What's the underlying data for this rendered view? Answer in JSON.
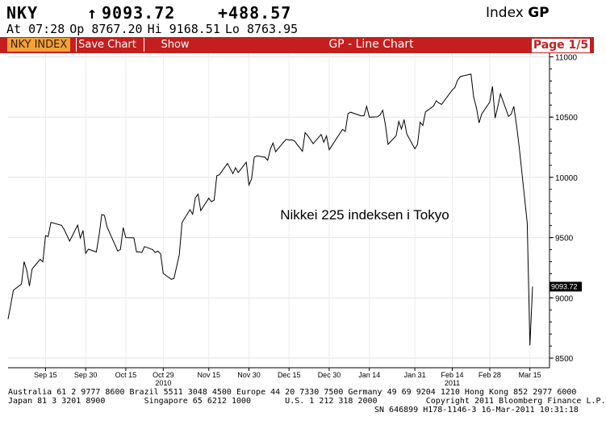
{
  "header": {
    "ticker": "NKY",
    "arrow": "↑",
    "last_price": "9093.72",
    "change": "+488.57",
    "index_label": "Index",
    "index_code": "GP",
    "time": "At 07:28",
    "open": "Op 8767.20",
    "high": "Hi 9168.51",
    "low": "Lo 8763.95"
  },
  "toolbar": {
    "index_tab": "NKY INDEX",
    "save_chart": "Save Chart",
    "show": "Show",
    "title": "GP - Line Chart",
    "page": "Page 1/5"
  },
  "colors": {
    "accent": "#c41e1e",
    "tab_orange": "#f2a23a",
    "line": "#000000",
    "grid": "#dcdcdc"
  },
  "chart_data": {
    "type": "line",
    "annotation": "Nikkei 225 indeksen i Tokyo",
    "last_value_label": "9093.72",
    "y_ticks": [
      8500,
      9000,
      9500,
      10000,
      10500,
      11000
    ],
    "ylim": [
      8420,
      11030
    ],
    "grid": true,
    "x_tick_labels": [
      "Sep 15",
      "Sep 30",
      "Oct 15",
      "Oct 29",
      "Nov 15",
      "Nov 30",
      "Dec 15",
      "Dec 30",
      "Jan 14",
      "Jan 31",
      "Feb 14",
      "Feb 28",
      "Mar 15"
    ],
    "year_labels": [
      {
        "label": "2010",
        "under": "Oct 29"
      },
      {
        "label": "2011",
        "under": "Feb 14"
      }
    ],
    "x_range": [
      "2010-09-01",
      "2011-03-16"
    ],
    "series": [
      {
        "values": [
          [
            "2010-09-01",
            8824
          ],
          [
            "2010-09-02",
            8940
          ],
          [
            "2010-09-03",
            9063
          ],
          [
            "2010-09-06",
            9114
          ],
          [
            "2010-09-07",
            9301
          ],
          [
            "2010-09-08",
            9227
          ],
          [
            "2010-09-09",
            9098
          ],
          [
            "2010-09-10",
            9240
          ],
          [
            "2010-09-13",
            9320
          ],
          [
            "2010-09-14",
            9299
          ],
          [
            "2010-09-15",
            9516
          ],
          [
            "2010-09-16",
            9509
          ],
          [
            "2010-09-17",
            9626
          ],
          [
            "2010-09-21",
            9602
          ],
          [
            "2010-09-22",
            9566
          ],
          [
            "2010-09-24",
            9471
          ],
          [
            "2010-09-27",
            9603
          ],
          [
            "2010-09-28",
            9496
          ],
          [
            "2010-09-29",
            9559
          ],
          [
            "2010-09-30",
            9369
          ],
          [
            "2010-10-01",
            9404
          ],
          [
            "2010-10-04",
            9381
          ],
          [
            "2010-10-05",
            9518
          ],
          [
            "2010-10-06",
            9691
          ],
          [
            "2010-10-07",
            9684
          ],
          [
            "2010-10-08",
            9588
          ],
          [
            "2010-10-12",
            9388
          ],
          [
            "2010-10-13",
            9403
          ],
          [
            "2010-10-14",
            9583
          ],
          [
            "2010-10-15",
            9500
          ],
          [
            "2010-10-18",
            9498
          ],
          [
            "2010-10-19",
            9381
          ],
          [
            "2010-10-20",
            9382
          ],
          [
            "2010-10-21",
            9376
          ],
          [
            "2010-10-22",
            9426
          ],
          [
            "2010-10-25",
            9401
          ],
          [
            "2010-10-26",
            9377
          ],
          [
            "2010-10-27",
            9387
          ],
          [
            "2010-10-28",
            9366
          ],
          [
            "2010-10-29",
            9202
          ],
          [
            "2010-11-01",
            9154
          ],
          [
            "2010-11-02",
            9160
          ],
          [
            "2010-11-04",
            9358
          ],
          [
            "2010-11-05",
            9625
          ],
          [
            "2010-11-08",
            9732
          ],
          [
            "2010-11-09",
            9694
          ],
          [
            "2010-11-10",
            9830
          ],
          [
            "2010-11-11",
            9861
          ],
          [
            "2010-11-12",
            9724
          ],
          [
            "2010-11-15",
            9827
          ],
          [
            "2010-11-16",
            9797
          ],
          [
            "2010-11-17",
            9811
          ],
          [
            "2010-11-18",
            10013
          ],
          [
            "2010-11-19",
            10022
          ],
          [
            "2010-11-22",
            10115
          ],
          [
            "2010-11-24",
            10030
          ],
          [
            "2010-11-25",
            10080
          ],
          [
            "2010-11-26",
            10039
          ],
          [
            "2010-11-29",
            10125
          ],
          [
            "2010-11-30",
            9937
          ],
          [
            "2010-12-01",
            9988
          ],
          [
            "2010-12-02",
            10168
          ],
          [
            "2010-12-03",
            10178
          ],
          [
            "2010-12-06",
            10167
          ],
          [
            "2010-12-07",
            10141
          ],
          [
            "2010-12-08",
            10232
          ],
          [
            "2010-12-09",
            10285
          ],
          [
            "2010-12-10",
            10212
          ],
          [
            "2010-12-13",
            10293
          ],
          [
            "2010-12-14",
            10316
          ],
          [
            "2010-12-15",
            10309
          ],
          [
            "2010-12-16",
            10311
          ],
          [
            "2010-12-17",
            10303
          ],
          [
            "2010-12-20",
            10216
          ],
          [
            "2010-12-21",
            10370
          ],
          [
            "2010-12-22",
            10346
          ],
          [
            "2010-12-24",
            10279
          ],
          [
            "2010-12-27",
            10356
          ],
          [
            "2010-12-28",
            10292
          ],
          [
            "2010-12-29",
            10344
          ],
          [
            "2010-12-30",
            10229
          ],
          [
            "2011-01-04",
            10398
          ],
          [
            "2011-01-05",
            10380
          ],
          [
            "2011-01-06",
            10529
          ],
          [
            "2011-01-07",
            10541
          ],
          [
            "2011-01-11",
            10510
          ],
          [
            "2011-01-12",
            10512
          ],
          [
            "2011-01-13",
            10589
          ],
          [
            "2011-01-14",
            10499
          ],
          [
            "2011-01-17",
            10502
          ],
          [
            "2011-01-18",
            10518
          ],
          [
            "2011-01-19",
            10557
          ],
          [
            "2011-01-20",
            10437
          ],
          [
            "2011-01-21",
            10274
          ],
          [
            "2011-01-24",
            10345
          ],
          [
            "2011-01-25",
            10464
          ],
          [
            "2011-01-26",
            10401
          ],
          [
            "2011-01-27",
            10479
          ],
          [
            "2011-01-28",
            10360
          ],
          [
            "2011-01-31",
            10237
          ],
          [
            "2011-02-01",
            10274
          ],
          [
            "2011-02-02",
            10457
          ],
          [
            "2011-02-03",
            10431
          ],
          [
            "2011-02-04",
            10543
          ],
          [
            "2011-02-07",
            10592
          ],
          [
            "2011-02-08",
            10635
          ],
          [
            "2011-02-09",
            10617
          ],
          [
            "2011-02-10",
            10605
          ],
          [
            "2011-02-14",
            10725
          ],
          [
            "2011-02-15",
            10746
          ],
          [
            "2011-02-16",
            10808
          ],
          [
            "2011-02-17",
            10836
          ],
          [
            "2011-02-18",
            10842
          ],
          [
            "2011-02-21",
            10857
          ],
          [
            "2011-02-22",
            10665
          ],
          [
            "2011-02-23",
            10579
          ],
          [
            "2011-02-24",
            10452
          ],
          [
            "2011-02-25",
            10526
          ],
          [
            "2011-02-28",
            10624
          ],
          [
            "2011-03-01",
            10754
          ],
          [
            "2011-03-02",
            10492
          ],
          [
            "2011-03-03",
            10586
          ],
          [
            "2011-03-04",
            10693
          ],
          [
            "2011-03-07",
            10505
          ],
          [
            "2011-03-08",
            10525
          ],
          [
            "2011-03-09",
            10589
          ],
          [
            "2011-03-10",
            10434
          ],
          [
            "2011-03-11",
            10254
          ],
          [
            "2011-03-14",
            9620
          ],
          [
            "2011-03-15",
            8605
          ],
          [
            "2011-03-16",
            9093
          ]
        ]
      }
    ]
  },
  "footer": {
    "line1": "Australia 61 2 9777 8600 Brazil 5511 3048 4500 Europe 44 20 7330 7500 Germany 49 69 9204 1210 Hong Kong 852 2977 6000",
    "line2": "Japan 81 3 3201 8900        Singapore 65 6212 1000       U.S. 1 212 318 2000          Copyright 2011 Bloomberg Finance L.P.",
    "line3": "SN 646899 H178-1146-3 16-Mar-2011 10:31:18"
  }
}
